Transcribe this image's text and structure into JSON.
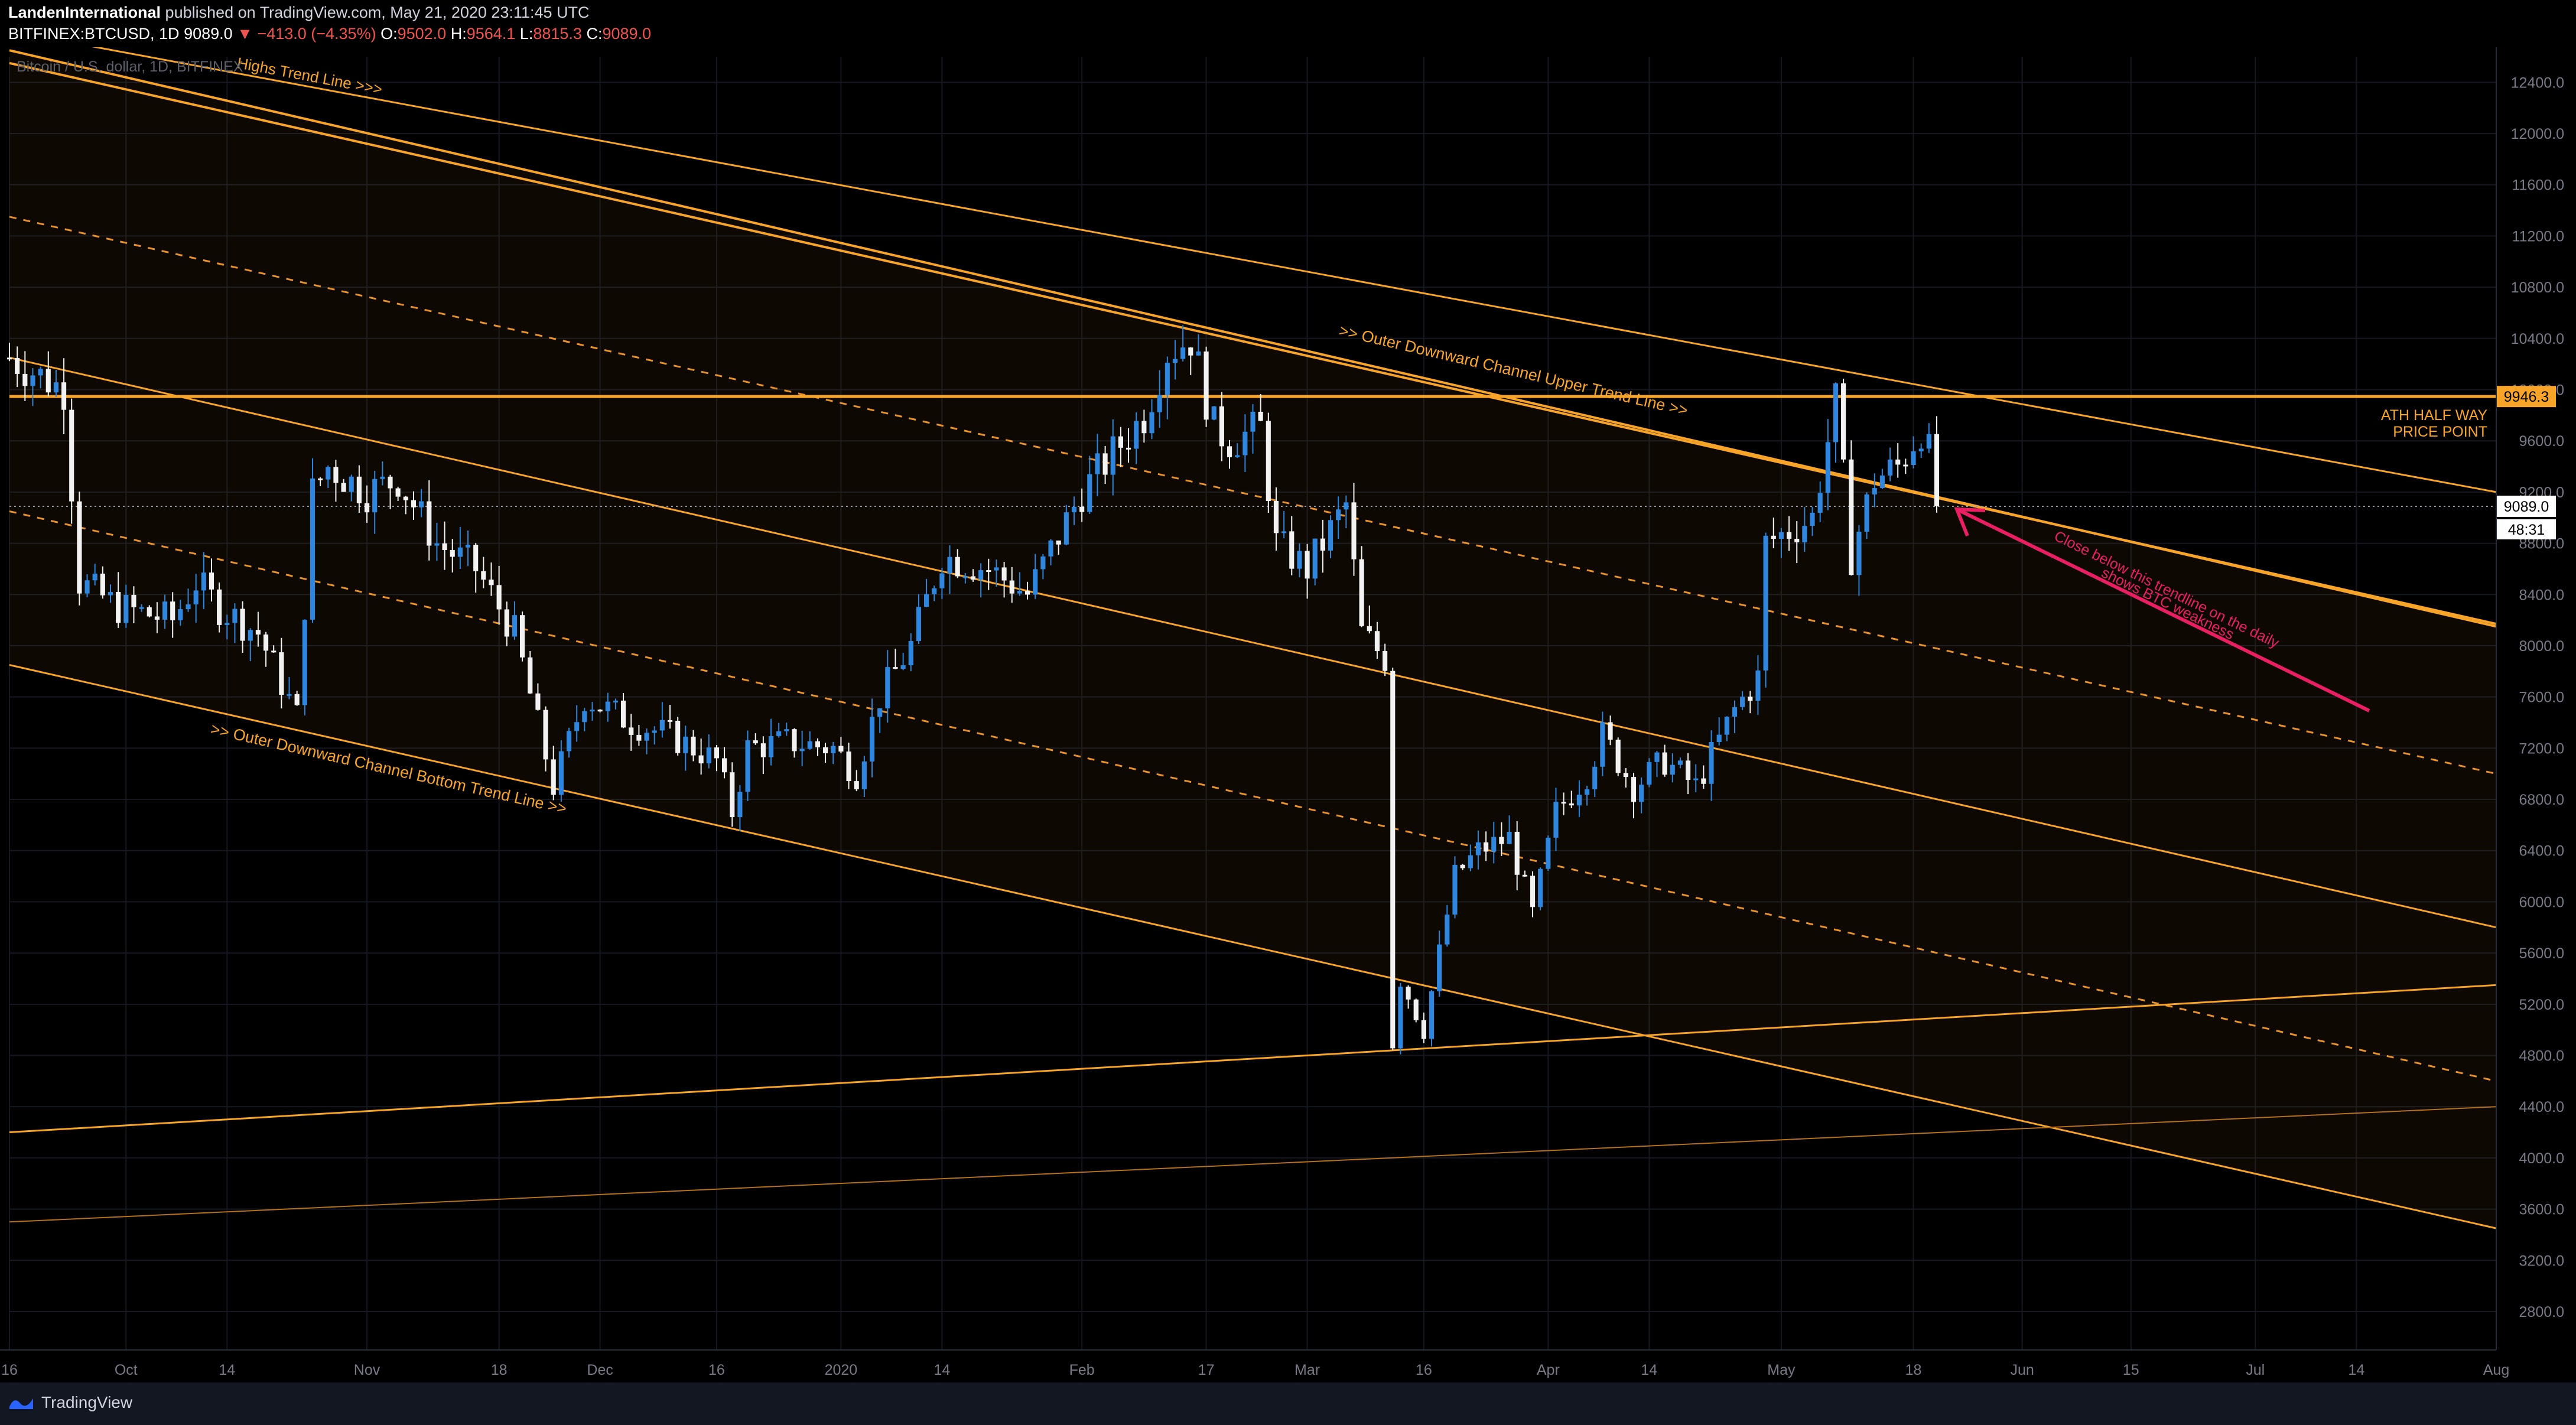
{
  "header": {
    "author": "LandenInternational",
    "published": "published on TradingView.com, May 21, 2020 23:11:45 UTC",
    "symbol": "BITFINEX:BTCUSD, 1D",
    "last": "9089.0",
    "change_arrow": "▼",
    "change": "−413.0 (−4.35%)",
    "o_label": "O:",
    "o_value": "9502.0",
    "h_label": "H:",
    "h_value": "9564.1",
    "l_label": "L:",
    "l_value": "8815.3",
    "c_label": "C:",
    "c_value": "9089.0"
  },
  "footer": {
    "brand": "TradingView",
    "logo_icon": "tradingview-logo-icon"
  },
  "colors": {
    "up": "#2e86de",
    "down": "#f2f2f2",
    "orange": "#f7a428",
    "pink": "#e91e63",
    "axis_text": "#787b86",
    "grid": "#151820"
  },
  "chart_data": {
    "type": "candlestick",
    "watermark": "Bitcoin / U.S. dollar, 1D, BITFINEX",
    "ylim": [
      2500,
      12600
    ],
    "yticks": [
      2800,
      3200,
      3600,
      4000,
      4400,
      4800,
      5200,
      5600,
      6000,
      6400,
      6800,
      7200,
      7600,
      8000,
      8400,
      8800,
      9200,
      9600,
      10000,
      10400,
      10800,
      11200,
      11600,
      12000,
      12400
    ],
    "ytick_labels": [
      "2800.0",
      "3200.0",
      "3600.0",
      "4000.0",
      "4400.0",
      "4800.0",
      "5200.0",
      "5600.0",
      "6000.0",
      "6400.0",
      "6800.0",
      "7200.0",
      "7600.0",
      "8000.0",
      "8400.0",
      "8800.0",
      "9200.0",
      "9600.0",
      "10000.0",
      "10400.0",
      "10800.0",
      "11200.0",
      "11600.0",
      "12000.0",
      "12400.0"
    ],
    "x_start": "2019-09-16",
    "x_end": "2020-08-01",
    "xticks": [
      {
        "date": "2019-09-16",
        "label": "16"
      },
      {
        "date": "2019-10-01",
        "label": "Oct"
      },
      {
        "date": "2019-10-14",
        "label": "14"
      },
      {
        "date": "2019-11-01",
        "label": "Nov"
      },
      {
        "date": "2019-11-18",
        "label": "18"
      },
      {
        "date": "2019-12-01",
        "label": "Dec"
      },
      {
        "date": "2019-12-16",
        "label": "16"
      },
      {
        "date": "2020-01-01",
        "label": "2020"
      },
      {
        "date": "2020-01-14",
        "label": "14"
      },
      {
        "date": "2020-02-01",
        "label": "Feb"
      },
      {
        "date": "2020-02-17",
        "label": "17"
      },
      {
        "date": "2020-03-01",
        "label": "Mar"
      },
      {
        "date": "2020-03-16",
        "label": "16"
      },
      {
        "date": "2020-04-01",
        "label": "Apr"
      },
      {
        "date": "2020-04-14",
        "label": "14"
      },
      {
        "date": "2020-05-01",
        "label": "May"
      },
      {
        "date": "2020-05-18",
        "label": "18"
      },
      {
        "date": "2020-06-01",
        "label": "Jun"
      },
      {
        "date": "2020-06-15",
        "label": "15"
      },
      {
        "date": "2020-07-01",
        "label": "Jul"
      },
      {
        "date": "2020-07-14",
        "label": "14"
      },
      {
        "date": "2020-08-01",
        "label": "Aug"
      }
    ],
    "price_path": [
      [
        "2019-09-16",
        10250
      ],
      [
        "2019-09-23",
        10000
      ],
      [
        "2019-09-25",
        8500
      ],
      [
        "2019-09-30",
        8300
      ],
      [
        "2019-10-07",
        8200
      ],
      [
        "2019-10-10",
        8500
      ],
      [
        "2019-10-13",
        8300
      ],
      [
        "2019-10-18",
        8100
      ],
      [
        "2019-10-23",
        7450
      ],
      [
        "2019-10-25",
        9200
      ],
      [
        "2019-10-27",
        9400
      ],
      [
        "2019-11-01",
        9200
      ],
      [
        "2019-11-05",
        9300
      ],
      [
        "2019-11-10",
        8800
      ],
      [
        "2019-11-15",
        8600
      ],
      [
        "2019-11-20",
        8100
      ],
      [
        "2019-11-25",
        6900
      ],
      [
        "2019-11-29",
        7600
      ],
      [
        "2019-12-05",
        7400
      ],
      [
        "2019-12-10",
        7300
      ],
      [
        "2019-12-16",
        7100
      ],
      [
        "2019-12-18",
        6700
      ],
      [
        "2019-12-20",
        7200
      ],
      [
        "2019-12-25",
        7250
      ],
      [
        "2019-12-31",
        7200
      ],
      [
        "2020-01-03",
        7000
      ],
      [
        "2020-01-06",
        7600
      ],
      [
        "2020-01-10",
        8000
      ],
      [
        "2020-01-14",
        8700
      ],
      [
        "2020-01-20",
        8600
      ],
      [
        "2020-01-25",
        8400
      ],
      [
        "2020-02-01",
        9200
      ],
      [
        "2020-02-05",
        9500
      ],
      [
        "2020-02-09",
        9800
      ],
      [
        "2020-02-12",
        10300
      ],
      [
        "2020-02-15",
        10400
      ],
      [
        "2020-02-18",
        9700
      ],
      [
        "2020-02-20",
        9600
      ],
      [
        "2020-02-24",
        9700
      ],
      [
        "2020-02-26",
        8800
      ],
      [
        "2020-03-01",
        8600
      ],
      [
        "2020-03-06",
        9100
      ],
      [
        "2020-03-08",
        8100
      ],
      [
        "2020-03-11",
        7900
      ],
      [
        "2020-03-12",
        4900
      ],
      [
        "2020-03-13",
        5400
      ],
      [
        "2020-03-16",
        5000
      ],
      [
        "2020-03-20",
        6200
      ],
      [
        "2020-03-23",
        6400
      ],
      [
        "2020-03-27",
        6500
      ],
      [
        "2020-03-30",
        5900
      ],
      [
        "2020-04-02",
        6700
      ],
      [
        "2020-04-06",
        7000
      ],
      [
        "2020-04-08",
        7300
      ],
      [
        "2020-04-12",
        6900
      ],
      [
        "2020-04-16",
        7100
      ],
      [
        "2020-04-20",
        6900
      ],
      [
        "2020-04-25",
        7500
      ],
      [
        "2020-04-28",
        7750
      ],
      [
        "2020-04-29",
        8800
      ],
      [
        "2020-05-02",
        8900
      ],
      [
        "2020-05-05",
        9000
      ],
      [
        "2020-05-08",
        9900
      ],
      [
        "2020-05-10",
        8700
      ],
      [
        "2020-05-13",
        9300
      ],
      [
        "2020-05-16",
        9400
      ],
      [
        "2020-05-19",
        9700
      ],
      [
        "2020-05-20",
        9500
      ],
      [
        "2020-05-21",
        9089
      ]
    ],
    "last_price": 9089.0,
    "last_price_label": "9089.0",
    "countdown_label": "48:31",
    "horizontal_line": {
      "price": 9946.3,
      "label": "9946.3",
      "note_line1": "ATH HALF WAY",
      "note_line2": "PRICE POINT"
    },
    "trendlines": [
      {
        "id": "highs-trend",
        "from": [
          "2019-09-16",
          12800
        ],
        "to": [
          "2020-08-01",
          9200
        ],
        "style": "solid"
      },
      {
        "id": "upper-channel-a",
        "from": [
          "2019-09-16",
          12650
        ],
        "to": [
          "2020-08-01",
          8150
        ],
        "style": "solid"
      },
      {
        "id": "upper-channel-b",
        "from": [
          "2019-09-16",
          12550
        ],
        "to": [
          "2020-08-01",
          8170
        ],
        "style": "solid"
      },
      {
        "id": "mid-dashed",
        "from": [
          "2019-09-16",
          11350
        ],
        "to": [
          "2020-08-01",
          7000
        ],
        "style": "dashed"
      },
      {
        "id": "inner-upper",
        "from": [
          "2019-09-16",
          10250
        ],
        "to": [
          "2020-08-01",
          5800
        ],
        "style": "solid"
      },
      {
        "id": "inner-dashed",
        "from": [
          "2019-09-16",
          9050
        ],
        "to": [
          "2020-08-01",
          4600
        ],
        "style": "dashed"
      },
      {
        "id": "bottom-channel",
        "from": [
          "2019-09-16",
          7850
        ],
        "to": [
          "2020-08-01",
          3450
        ],
        "style": "solid"
      },
      {
        "id": "rising-support",
        "from": [
          "2019-09-16",
          4200
        ],
        "to": [
          "2020-08-01",
          5350
        ],
        "style": "solid"
      },
      {
        "id": "rising-support-2",
        "from": [
          "2019-09-16",
          3500
        ],
        "to": [
          "2020-08-01",
          4400
        ],
        "style": "thin"
      }
    ],
    "annotations": {
      "highs_label": "Highs Trend Line >>>",
      "upper_label": ">> Outer Downward Channel Upper Trend Line >>",
      "bottom_label": ">> Outer Downward Channel Bottom Trend Line >>",
      "pink_note_line1": "Close below this trendline on the daily",
      "pink_note_line2": "shows BTC weakness"
    }
  }
}
